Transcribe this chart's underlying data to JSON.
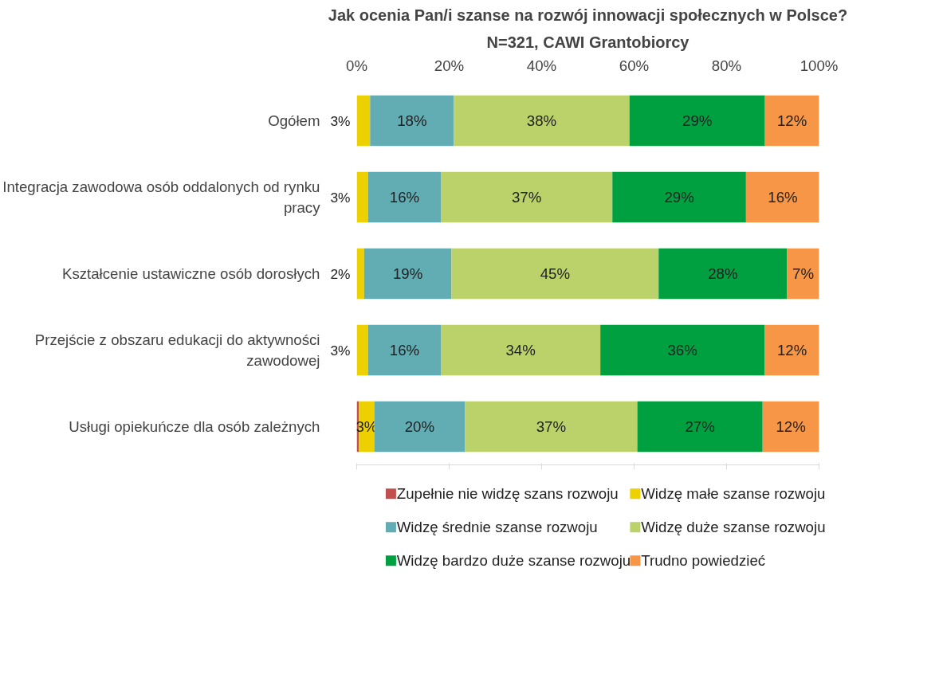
{
  "chart_data": {
    "type": "bar",
    "orientation": "horizontal",
    "stacked": true,
    "title": "Jak ocenia Pan/i szanse na rozwój innowacji społecznych w Polsce?",
    "subtitle": "N=321, CAWI Grantobiorcy",
    "categories": [
      "Ogółem",
      "Integracja zawodowa osób oddalonych od rynku pracy",
      "Kształcenie ustawiczne osób dorosłych",
      "Przejście z obszaru edukacji do aktywności zawodowej",
      "Usługi opiekuńcze dla osób zależnych"
    ],
    "series": [
      {
        "name": "Zupełnie nie widzę szans rozwoju",
        "color": "#c0504d",
        "values": [
          0,
          0,
          0,
          0,
          0.5
        ],
        "value_labels": [
          null,
          null,
          null,
          null,
          null
        ]
      },
      {
        "name": "Widzę małe szanse rozwoju",
        "color": "#ecd000",
        "values": [
          2.9,
          2.5,
          1.6,
          2.5,
          3.3
        ],
        "value_labels": [
          "3%",
          "3%",
          "2%",
          "3%",
          "3%"
        ]
      },
      {
        "name": "Widzę średnie szanse rozwoju",
        "color": "#62acb4",
        "values": [
          18.1,
          15.7,
          18.9,
          15.7,
          19.6
        ],
        "value_labels": [
          "18%",
          "16%",
          "19%",
          "16%",
          "20%"
        ]
      },
      {
        "name": "Widzę duże szanse rozwoju",
        "color": "#bbd169",
        "values": [
          38.0,
          37.1,
          44.8,
          34.5,
          37.3
        ],
        "value_labels": [
          "38%",
          "37%",
          "45%",
          "34%",
          "37%"
        ]
      },
      {
        "name": "Widzę bardzo duże szanse rozwoju",
        "color": "#00a040",
        "values": [
          29.3,
          28.9,
          27.8,
          35.5,
          27.1
        ],
        "value_labels": [
          "29%",
          "29%",
          "28%",
          "36%",
          "27%"
        ]
      },
      {
        "name": "Trudno powiedzieć",
        "color": "#f79646",
        "values": [
          11.7,
          15.9,
          6.9,
          11.9,
          12.2
        ],
        "value_labels": [
          "12%",
          "16%",
          "7%",
          "12%",
          "12%"
        ]
      }
    ],
    "xlim": [
      0,
      100
    ],
    "xticks": [
      {
        "value": 0,
        "label": "0%"
      },
      {
        "value": 20,
        "label": "20%"
      },
      {
        "value": 40,
        "label": "40%"
      },
      {
        "value": 60,
        "label": "60%"
      },
      {
        "value": 80,
        "label": "80%"
      },
      {
        "value": 100,
        "label": "100%"
      }
    ],
    "grid": false,
    "legend": "bottom"
  }
}
